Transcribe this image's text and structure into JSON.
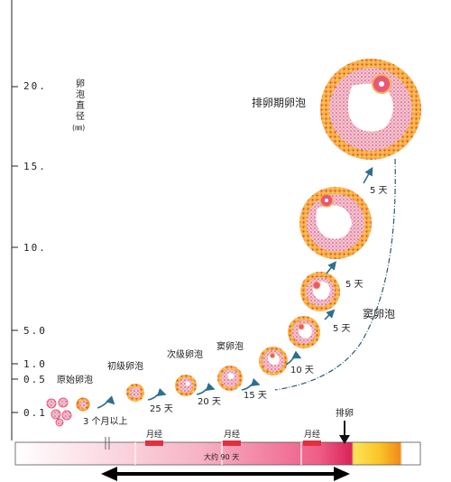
{
  "axis": {
    "title_lines": [
      "卵",
      "泡",
      "直",
      "径",
      "(㎜)"
    ],
    "ticks": [
      "20.",
      "15.",
      "10.",
      "5.0",
      "1.0",
      "0.5",
      "0.1"
    ]
  },
  "stages": {
    "primordial": "原始卵泡",
    "primary": "初级卵泡",
    "secondary": "次级卵泡",
    "antral_small": "窦卵泡",
    "antral": "窦卵泡",
    "ovulatory": "排卵期卵泡"
  },
  "intervals": [
    "3 个月以上",
    "25 天",
    "20 天",
    "15 天",
    "10 天",
    "5 天",
    "5 天",
    "5 天"
  ],
  "timeline": {
    "ovulation": "排卵",
    "menses": [
      "月经",
      "月经",
      "月经"
    ],
    "duration": "大约 90 天"
  },
  "colors": {
    "follicle_outer": "#f0a24a",
    "follicle_inner": "#e8577a",
    "arrow_blue": "#2d6f8e",
    "menses_red": "#e03040",
    "bar_end_orange": "#f7a21b"
  }
}
